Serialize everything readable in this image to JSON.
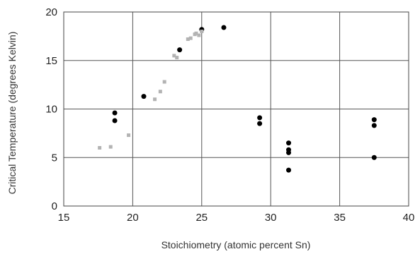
{
  "chart_data": {
    "type": "scatter",
    "title": "",
    "xlabel": "Stoichiometry (atomic percent Sn)",
    "ylabel": "Critical Temperature (degrees Kelvin)",
    "xlim": [
      15,
      40
    ],
    "ylim": [
      0,
      20
    ],
    "xticks": [
      15,
      20,
      25,
      30,
      35,
      40
    ],
    "yticks": [
      0,
      5,
      10,
      15,
      20
    ],
    "grid": true,
    "legend": "none",
    "series": [
      {
        "marker": "circle",
        "color": "#000000",
        "points": [
          [
            18.7,
            9.6
          ],
          [
            18.7,
            8.8
          ],
          [
            20.8,
            11.3
          ],
          [
            23.4,
            16.1
          ],
          [
            25.0,
            18.2
          ],
          [
            26.6,
            18.4
          ],
          [
            29.2,
            9.1
          ],
          [
            29.2,
            8.5
          ],
          [
            31.3,
            6.5
          ],
          [
            31.3,
            5.8
          ],
          [
            31.3,
            5.5
          ],
          [
            31.3,
            3.7
          ],
          [
            37.5,
            8.9
          ],
          [
            37.5,
            8.3
          ],
          [
            37.5,
            5.0
          ]
        ]
      },
      {
        "marker": "square",
        "color": "#b3b3b3",
        "points": [
          [
            17.6,
            6.0
          ],
          [
            18.4,
            6.1
          ],
          [
            19.7,
            7.3
          ],
          [
            21.6,
            11.0
          ],
          [
            22.0,
            11.8
          ],
          [
            22.3,
            12.8
          ],
          [
            23.0,
            15.5
          ],
          [
            23.2,
            15.3
          ],
          [
            24.0,
            17.2
          ],
          [
            24.2,
            17.3
          ],
          [
            24.5,
            17.7
          ],
          [
            24.6,
            17.8
          ],
          [
            24.8,
            17.6
          ],
          [
            25.0,
            18.0
          ]
        ]
      }
    ]
  }
}
